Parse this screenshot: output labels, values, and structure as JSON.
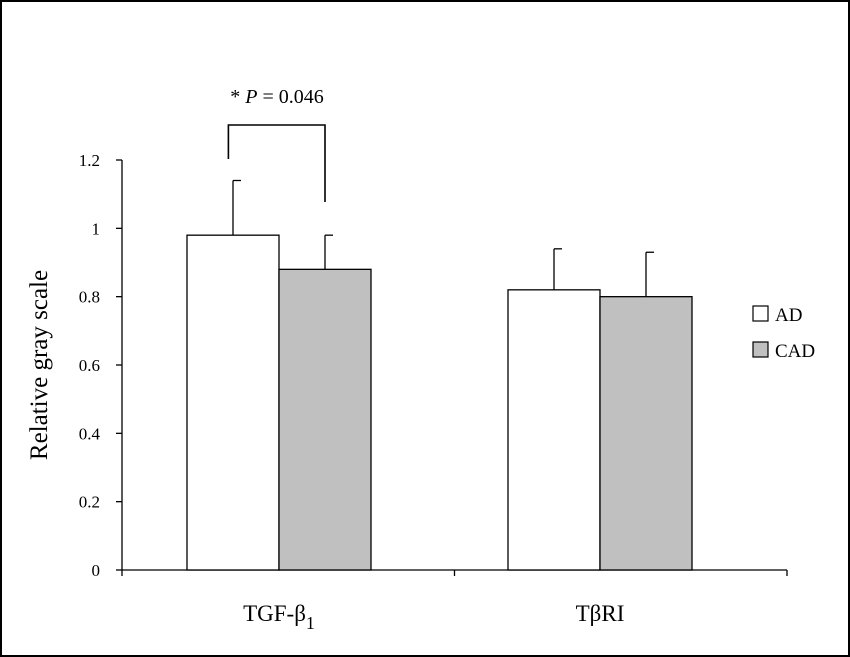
{
  "chart_data": {
    "type": "bar",
    "ylabel": "Relative gray scale",
    "xlabel": "",
    "ylim": [
      0,
      1.2
    ],
    "yticks": [
      0,
      0.2,
      0.4,
      0.6,
      0.8,
      1,
      1.2
    ],
    "ytick_labels": [
      "0",
      "0.2",
      "0.4",
      "0.6",
      "0.8",
      "1",
      "1.2"
    ],
    "categories": [
      {
        "main": "TGF-β",
        "sub": "1"
      },
      {
        "main": "TβRI",
        "sub": ""
      }
    ],
    "series": [
      {
        "name": "AD",
        "color": "#ffffff",
        "values": [
          0.98,
          0.82
        ],
        "errors": [
          0.16,
          0.12
        ]
      },
      {
        "name": "CAD",
        "color": "#c0c0c0",
        "values": [
          0.88,
          0.8
        ],
        "errors": [
          0.1,
          0.13
        ]
      }
    ],
    "grid": false,
    "legend_position": "right",
    "annotation": {
      "star": "*",
      "p_symbol": "P",
      "rest": " = 0.046",
      "category_index": 0
    }
  }
}
